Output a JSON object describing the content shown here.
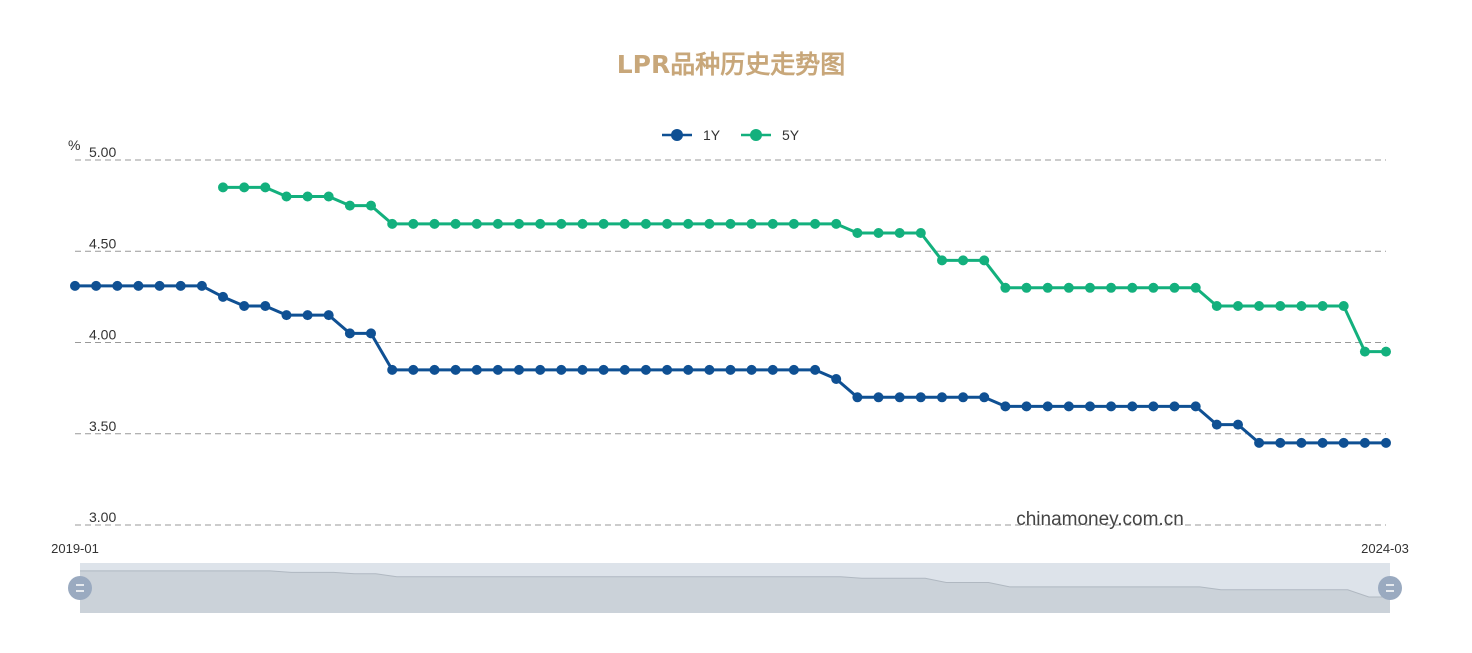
{
  "colors": {
    "title": "#c8a77a",
    "series_1y": "#0f5093",
    "series_5y": "#13b07d",
    "grid": "#999999",
    "axis_text": "#333333",
    "zoom_fill": "#dde3ea",
    "zoom_area": "#cbd2d9",
    "zoom_line": "#b0b8c1",
    "zoom_handle": "#9aaac0"
  },
  "chart_data": {
    "type": "line",
    "title": "LPR品种历史走势图",
    "ylabel": "%",
    "ylim": [
      3.0,
      5.0
    ],
    "yticks": [
      "5.00",
      "4.50",
      "4.00",
      "3.50",
      "3.00"
    ],
    "ytick_values": [
      5.0,
      4.5,
      4.0,
      3.5,
      3.0
    ],
    "x_range_labels": [
      "2019-01",
      "2024-03"
    ],
    "grid": "horizontal-dashed",
    "legend_position": "top-center",
    "watermark": "chinamoney.com.cn",
    "series": [
      {
        "name": "1Y",
        "values": [
          4.31,
          4.31,
          4.31,
          4.31,
          4.31,
          4.31,
          4.31,
          4.25,
          4.2,
          4.2,
          4.15,
          4.15,
          4.15,
          4.05,
          4.05,
          3.85,
          3.85,
          3.85,
          3.85,
          3.85,
          3.85,
          3.85,
          3.85,
          3.85,
          3.85,
          3.85,
          3.85,
          3.85,
          3.85,
          3.85,
          3.85,
          3.85,
          3.85,
          3.85,
          3.85,
          3.85,
          3.8,
          3.7,
          3.7,
          3.7,
          3.7,
          3.7,
          3.7,
          3.7,
          3.65,
          3.65,
          3.65,
          3.65,
          3.65,
          3.65,
          3.65,
          3.65,
          3.65,
          3.65,
          3.55,
          3.55,
          3.45,
          3.45,
          3.45,
          3.45,
          3.45,
          3.45,
          3.45
        ]
      },
      {
        "name": "5Y",
        "values": [
          null,
          null,
          null,
          null,
          null,
          null,
          null,
          4.85,
          4.85,
          4.85,
          4.8,
          4.8,
          4.8,
          4.75,
          4.75,
          4.65,
          4.65,
          4.65,
          4.65,
          4.65,
          4.65,
          4.65,
          4.65,
          4.65,
          4.65,
          4.65,
          4.65,
          4.65,
          4.65,
          4.65,
          4.65,
          4.65,
          4.65,
          4.65,
          4.65,
          4.65,
          4.65,
          4.6,
          4.6,
          4.6,
          4.6,
          4.45,
          4.45,
          4.45,
          4.3,
          4.3,
          4.3,
          4.3,
          4.3,
          4.3,
          4.3,
          4.3,
          4.3,
          4.3,
          4.2,
          4.2,
          4.2,
          4.2,
          4.2,
          4.2,
          4.2,
          3.95,
          3.95
        ]
      }
    ]
  }
}
